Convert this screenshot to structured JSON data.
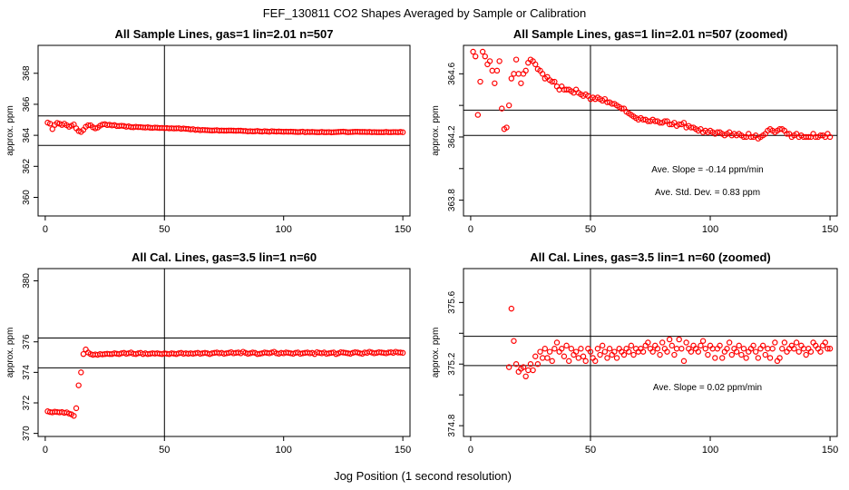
{
  "page": {
    "title": "FEF_130811  CO2 Shapes Averaged by Sample or Calibration",
    "common_xlabel": "Jog Position (1 second resolution)"
  },
  "colors": {
    "points": "#ff0000",
    "axes": "#000000",
    "background": "#ffffff"
  },
  "chart_data": [
    {
      "id": "sample-lines",
      "type": "scatter",
      "title": "All Sample Lines, gas=1 lin=2.01 n=507",
      "xlabel": "",
      "ylabel": "approx. ppm",
      "xlim": [
        -3,
        153
      ],
      "ylim": [
        358.8,
        369.8
      ],
      "xticks": [
        0,
        50,
        100,
        150
      ],
      "yticks": [
        360,
        362,
        364,
        366,
        368
      ],
      "vlines": [
        50
      ],
      "hlines": [
        365.25,
        363.35
      ],
      "annotations": [],
      "x": [
        1,
        2,
        3,
        4,
        5,
        6,
        7,
        8,
        9,
        10,
        11,
        12,
        13,
        14,
        15,
        16,
        17,
        18,
        19,
        20,
        21,
        22,
        23,
        24,
        25,
        26,
        27,
        28,
        29,
        30,
        31,
        32,
        33,
        34,
        35,
        36,
        37,
        38,
        39,
        40,
        41,
        42,
        43,
        44,
        45,
        46,
        47,
        48,
        49,
        50,
        51,
        52,
        53,
        54,
        55,
        56,
        57,
        58,
        59,
        60,
        61,
        62,
        63,
        64,
        65,
        66,
        67,
        68,
        69,
        70,
        71,
        72,
        73,
        74,
        75,
        76,
        77,
        78,
        79,
        80,
        81,
        82,
        83,
        84,
        85,
        86,
        87,
        88,
        89,
        90,
        91,
        92,
        93,
        94,
        95,
        96,
        97,
        98,
        99,
        100,
        101,
        102,
        103,
        104,
        105,
        106,
        107,
        108,
        109,
        110,
        111,
        112,
        113,
        114,
        115,
        116,
        117,
        118,
        119,
        120,
        121,
        122,
        123,
        124,
        125,
        126,
        127,
        128,
        129,
        130,
        131,
        132,
        133,
        134,
        135,
        136,
        137,
        138,
        139,
        140,
        141,
        142,
        143,
        144,
        145,
        146,
        147,
        148,
        149,
        150
      ],
      "y": [
        364.82,
        364.75,
        364.4,
        364.67,
        364.8,
        364.75,
        364.67,
        364.75,
        364.65,
        364.55,
        364.62,
        364.7,
        364.45,
        364.28,
        364.22,
        364.35,
        364.55,
        364.65,
        364.65,
        364.52,
        364.45,
        364.5,
        364.62,
        364.7,
        364.72,
        364.66,
        364.68,
        364.64,
        364.66,
        364.6,
        364.6,
        364.62,
        364.6,
        364.55,
        364.58,
        364.53,
        364.52,
        364.55,
        364.53,
        364.53,
        364.51,
        364.5,
        364.52,
        364.49,
        364.48,
        364.5,
        364.49,
        364.47,
        364.48,
        364.46,
        364.47,
        364.45,
        364.46,
        364.44,
        364.45,
        364.46,
        364.42,
        364.44,
        364.42,
        364.41,
        364.38,
        364.4,
        364.35,
        364.37,
        364.33,
        364.35,
        364.34,
        364.33,
        364.32,
        364.31,
        364.32,
        364.33,
        364.3,
        364.31,
        364.3,
        364.3,
        364.31,
        364.31,
        364.3,
        364.29,
        364.3,
        364.3,
        364.28,
        364.28,
        364.25,
        364.27,
        364.25,
        364.26,
        364.28,
        364.25,
        364.24,
        364.27,
        364.25,
        364.23,
        364.27,
        364.25,
        364.24,
        364.25,
        364.24,
        364.23,
        364.24,
        364.23,
        364.24,
        364.23,
        364.22,
        364.21,
        364.22,
        364.24,
        364.2,
        364.22,
        364.21,
        364.22,
        364.21,
        364.2,
        364.2,
        364.22,
        364.2,
        364.2,
        364.21,
        364.19,
        364.2,
        364.21,
        364.22,
        364.23,
        364.24,
        364.22,
        364.2,
        364.21,
        364.22,
        364.23,
        364.23,
        364.22,
        364.22,
        364.22,
        364.21,
        364.22,
        364.2,
        364.21,
        364.2,
        364.2,
        364.2,
        364.2,
        364.22,
        364.2,
        364.2,
        364.21,
        364.21,
        364.2,
        364.22,
        364.2
      ]
    },
    {
      "id": "sample-lines-zoomed",
      "type": "scatter",
      "title": "All Sample Lines, gas=1 lin=2.01 n=507 (zoomed)",
      "xlabel": "",
      "ylabel": "approx. ppm",
      "xlim": [
        -3,
        153
      ],
      "ylim": [
        363.7,
        364.78
      ],
      "xticks": [
        0,
        50,
        100,
        150
      ],
      "yticks": [
        363.8,
        364.2,
        364.6
      ],
      "ytick_labels": [
        "363.8",
        "364.2",
        "364.6"
      ],
      "ytick_minor": [
        364.0,
        364.4
      ],
      "vlines": [
        50
      ],
      "hlines": [
        364.37,
        364.21
      ],
      "annotations": [
        "Ave. Slope =  -0.14  ppm/min",
        "Ave. Std. Dev. =  0.83  ppm"
      ],
      "x": [
        1,
        2,
        3,
        4,
        5,
        6,
        7,
        8,
        9,
        10,
        11,
        12,
        13,
        14,
        15,
        16,
        17,
        18,
        19,
        20,
        21,
        22,
        23,
        24,
        25,
        26,
        27,
        28,
        29,
        30,
        31,
        32,
        33,
        34,
        35,
        36,
        37,
        38,
        39,
        40,
        41,
        42,
        43,
        44,
        45,
        46,
        47,
        48,
        49,
        50,
        51,
        52,
        53,
        54,
        55,
        56,
        57,
        58,
        59,
        60,
        61,
        62,
        63,
        64,
        65,
        66,
        67,
        68,
        69,
        70,
        71,
        72,
        73,
        74,
        75,
        76,
        77,
        78,
        79,
        80,
        81,
        82,
        83,
        84,
        85,
        86,
        87,
        88,
        89,
        90,
        91,
        92,
        93,
        94,
        95,
        96,
        97,
        98,
        99,
        100,
        101,
        102,
        103,
        104,
        105,
        106,
        107,
        108,
        109,
        110,
        111,
        112,
        113,
        114,
        115,
        116,
        117,
        118,
        119,
        120,
        121,
        122,
        123,
        124,
        125,
        126,
        127,
        128,
        129,
        130,
        131,
        132,
        133,
        134,
        135,
        136,
        137,
        138,
        139,
        140,
        141,
        142,
        143,
        144,
        145,
        146,
        147,
        148,
        149,
        150
      ],
      "y": [
        364.74,
        364.71,
        364.34,
        364.55,
        364.74,
        364.71,
        364.66,
        364.68,
        364.62,
        364.54,
        364.62,
        364.68,
        364.38,
        364.25,
        364.26,
        364.4,
        364.57,
        364.6,
        364.69,
        364.6,
        364.54,
        364.6,
        364.62,
        364.67,
        364.69,
        364.68,
        364.66,
        364.63,
        364.62,
        364.6,
        364.57,
        364.58,
        364.56,
        364.55,
        364.55,
        364.52,
        364.5,
        364.52,
        364.5,
        364.5,
        364.5,
        364.49,
        364.48,
        364.5,
        364.48,
        364.47,
        364.46,
        364.47,
        364.46,
        364.44,
        364.45,
        364.44,
        364.45,
        364.44,
        364.43,
        364.44,
        364.42,
        364.42,
        364.41,
        364.41,
        364.4,
        364.39,
        364.38,
        364.38,
        364.36,
        364.35,
        364.34,
        364.33,
        364.32,
        364.31,
        364.32,
        364.31,
        364.31,
        364.3,
        364.3,
        364.31,
        364.3,
        364.3,
        364.29,
        364.29,
        364.3,
        364.3,
        364.28,
        364.28,
        364.29,
        364.27,
        364.28,
        364.28,
        364.29,
        364.26,
        364.27,
        364.26,
        364.26,
        364.25,
        364.24,
        364.25,
        364.23,
        364.24,
        364.23,
        364.24,
        364.23,
        364.22,
        364.23,
        364.23,
        364.22,
        364.21,
        364.22,
        364.23,
        364.21,
        364.22,
        364.21,
        364.22,
        364.21,
        364.2,
        364.2,
        364.22,
        364.2,
        364.2,
        364.21,
        364.19,
        364.2,
        364.21,
        364.22,
        364.24,
        364.25,
        364.24,
        364.23,
        364.24,
        364.25,
        364.25,
        364.24,
        364.22,
        364.22,
        364.2,
        364.21,
        364.22,
        364.2,
        364.21,
        364.2,
        364.2,
        364.2,
        364.2,
        364.22,
        364.2,
        364.2,
        364.21,
        364.21,
        364.2,
        364.22,
        364.2
      ]
    },
    {
      "id": "cal-lines",
      "type": "scatter",
      "title": "All Cal. Lines, gas=3.5 lin=1 n=60",
      "xlabel": "",
      "ylabel": "approx. ppm",
      "xlim": [
        -3,
        153
      ],
      "ylim": [
        369.8,
        380.8
      ],
      "xticks": [
        0,
        50,
        100,
        150
      ],
      "yticks": [
        370,
        372,
        374,
        376,
        380
      ],
      "ytick_labels": [
        "370",
        "372",
        "374",
        "376",
        "380"
      ],
      "vlines": [
        50
      ],
      "hlines": [
        376.25,
        374.3
      ],
      "annotations": [],
      "x": [
        1,
        2,
        3,
        4,
        5,
        6,
        7,
        8,
        9,
        10,
        11,
        12,
        13,
        14,
        15,
        16,
        17,
        18,
        19,
        20,
        21,
        22,
        23,
        24,
        25,
        26,
        27,
        28,
        29,
        30,
        31,
        32,
        33,
        34,
        35,
        36,
        37,
        38,
        39,
        40,
        41,
        42,
        43,
        44,
        45,
        46,
        47,
        48,
        49,
        50,
        51,
        52,
        53,
        54,
        55,
        56,
        57,
        58,
        59,
        60,
        61,
        62,
        63,
        64,
        65,
        66,
        67,
        68,
        69,
        70,
        71,
        72,
        73,
        74,
        75,
        76,
        77,
        78,
        79,
        80,
        81,
        82,
        83,
        84,
        85,
        86,
        87,
        88,
        89,
        90,
        91,
        92,
        93,
        94,
        95,
        96,
        97,
        98,
        99,
        100,
        101,
        102,
        103,
        104,
        105,
        106,
        107,
        108,
        109,
        110,
        111,
        112,
        113,
        114,
        115,
        116,
        117,
        118,
        119,
        120,
        121,
        122,
        123,
        124,
        125,
        126,
        127,
        128,
        129,
        130,
        131,
        132,
        133,
        134,
        135,
        136,
        137,
        138,
        139,
        140,
        141,
        142,
        143,
        144,
        145,
        146,
        147,
        148,
        149,
        150
      ],
      "y": [
        371.45,
        371.4,
        371.38,
        371.42,
        371.4,
        371.38,
        371.4,
        371.35,
        371.38,
        371.3,
        371.25,
        371.15,
        371.65,
        373.15,
        374.0,
        375.2,
        375.5,
        375.3,
        375.2,
        375.15,
        375.18,
        375.15,
        375.2,
        375.18,
        375.2,
        375.22,
        375.2,
        375.2,
        375.25,
        375.22,
        375.2,
        375.25,
        375.28,
        375.22,
        375.25,
        375.3,
        375.22,
        375.2,
        375.25,
        375.28,
        375.2,
        375.25,
        375.2,
        375.22,
        375.25,
        375.23,
        375.25,
        375.22,
        375.2,
        375.25,
        375.22,
        375.2,
        375.25,
        375.23,
        375.2,
        375.25,
        375.28,
        375.22,
        375.25,
        375.22,
        375.25,
        375.22,
        375.25,
        375.28,
        375.22,
        375.25,
        375.28,
        375.25,
        375.2,
        375.25,
        375.28,
        375.3,
        375.25,
        375.28,
        375.22,
        375.25,
        375.28,
        375.32,
        375.25,
        375.28,
        375.3,
        375.25,
        375.35,
        375.28,
        375.22,
        375.25,
        375.3,
        375.28,
        375.2,
        375.22,
        375.25,
        375.3,
        375.28,
        375.25,
        375.3,
        375.35,
        375.25,
        375.22,
        375.28,
        375.25,
        375.3,
        375.28,
        375.25,
        375.22,
        375.28,
        375.3,
        375.22,
        375.25,
        375.28,
        375.3,
        375.25,
        375.28,
        375.2,
        375.32,
        375.28,
        375.25,
        375.3,
        375.22,
        375.25,
        375.28,
        375.3,
        375.2,
        375.25,
        375.32,
        375.3,
        375.28,
        375.25,
        375.22,
        375.28,
        375.32,
        375.3,
        375.25,
        375.22,
        375.3,
        375.28,
        375.35,
        375.3,
        375.25,
        375.28,
        375.32,
        375.3,
        375.28,
        375.25,
        375.3,
        375.32,
        375.28,
        375.35,
        375.3,
        375.3,
        375.28
      ]
    },
    {
      "id": "cal-lines-zoomed",
      "type": "scatter",
      "title": "All Cal. Lines, gas=3.5 lin=1 n=60 (zoomed)",
      "xlabel": "",
      "ylabel": "approx. ppm",
      "xlim": [
        -3,
        153
      ],
      "ylim": [
        374.73,
        375.82
      ],
      "xticks": [
        0,
        50,
        100,
        150
      ],
      "yticks": [
        374.8,
        375.2,
        375.6
      ],
      "ytick_labels": [
        "374.8",
        "375.2",
        "375.6"
      ],
      "ytick_minor": [
        375.0,
        375.4
      ],
      "vlines": [
        50
      ],
      "hlines": [
        375.38,
        375.19
      ],
      "annotations": [
        "Ave. Slope =  0.02  ppm/min"
      ],
      "x": [
        16,
        17,
        18,
        19,
        20,
        21,
        22,
        23,
        24,
        25,
        26,
        27,
        28,
        29,
        30,
        31,
        32,
        33,
        34,
        35,
        36,
        37,
        38,
        39,
        40,
        41,
        42,
        43,
        44,
        45,
        46,
        47,
        48,
        49,
        50,
        51,
        52,
        53,
        54,
        55,
        56,
        57,
        58,
        59,
        60,
        61,
        62,
        63,
        64,
        65,
        66,
        67,
        68,
        69,
        70,
        71,
        72,
        73,
        74,
        75,
        76,
        77,
        78,
        79,
        80,
        81,
        82,
        83,
        84,
        85,
        86,
        87,
        88,
        89,
        90,
        91,
        92,
        93,
        94,
        95,
        96,
        97,
        98,
        99,
        100,
        101,
        102,
        103,
        104,
        105,
        106,
        107,
        108,
        109,
        110,
        111,
        112,
        113,
        114,
        115,
        116,
        117,
        118,
        119,
        120,
        121,
        122,
        123,
        124,
        125,
        126,
        127,
        128,
        129,
        130,
        131,
        132,
        133,
        134,
        135,
        136,
        137,
        138,
        139,
        140,
        141,
        142,
        143,
        144,
        145,
        146,
        147,
        148,
        149,
        150
      ],
      "y": [
        375.18,
        375.56,
        375.35,
        375.2,
        375.15,
        375.17,
        375.18,
        375.12,
        375.16,
        375.2,
        375.16,
        375.25,
        375.2,
        375.28,
        375.24,
        375.3,
        375.24,
        375.28,
        375.22,
        375.3,
        375.34,
        375.28,
        375.3,
        375.25,
        375.32,
        375.22,
        375.3,
        375.26,
        375.28,
        375.24,
        375.3,
        375.25,
        375.22,
        375.3,
        375.28,
        375.24,
        375.22,
        375.3,
        375.26,
        375.32,
        375.28,
        375.24,
        375.3,
        375.26,
        375.28,
        375.24,
        375.3,
        375.28,
        375.26,
        375.3,
        375.28,
        375.32,
        375.26,
        375.3,
        375.28,
        375.3,
        375.28,
        375.32,
        375.34,
        375.3,
        375.28,
        375.32,
        375.3,
        375.26,
        375.34,
        375.3,
        375.28,
        375.36,
        375.32,
        375.26,
        375.3,
        375.36,
        375.3,
        375.22,
        375.34,
        375.3,
        375.28,
        375.32,
        375.3,
        375.28,
        375.32,
        375.35,
        375.3,
        375.26,
        375.32,
        375.3,
        375.24,
        375.3,
        375.32,
        375.24,
        375.28,
        375.3,
        375.34,
        375.26,
        375.3,
        375.28,
        375.32,
        375.26,
        375.3,
        375.24,
        375.28,
        375.3,
        375.32,
        375.28,
        375.24,
        375.3,
        375.32,
        375.26,
        375.3,
        375.24,
        375.3,
        375.34,
        375.22,
        375.24,
        375.3,
        375.34,
        375.28,
        375.3,
        375.32,
        375.3,
        375.34,
        375.28,
        375.32,
        375.3,
        375.26,
        375.3,
        375.28,
        375.34,
        375.32,
        375.3,
        375.28,
        375.32,
        375.34,
        375.3,
        375.3
      ]
    }
  ]
}
